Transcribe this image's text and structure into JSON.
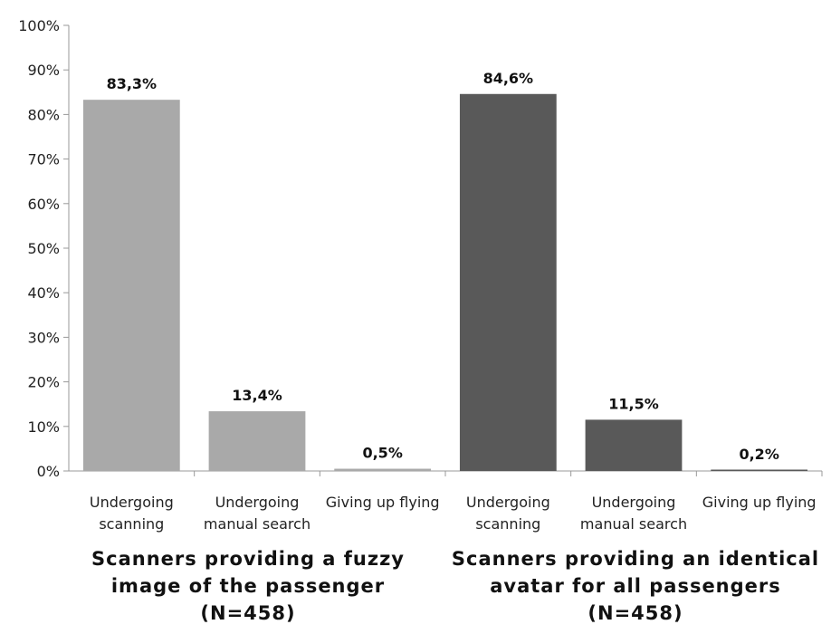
{
  "chart_data": {
    "type": "bar",
    "ylim": [
      0,
      100
    ],
    "yticks": [
      "0%",
      "10%",
      "20%",
      "30%",
      "40%",
      "50%",
      "60%",
      "70%",
      "80%",
      "90%",
      "100%"
    ],
    "grid": false,
    "groups": [
      {
        "name_lines": [
          "Scanners providing a fuzzy",
          "image of the passenger",
          "(N=458)"
        ],
        "color": "#a9a9a9",
        "bars": [
          {
            "label_lines": [
              "Undergoing",
              "scanning"
            ],
            "value": 83.3,
            "value_label": "83,3%"
          },
          {
            "label_lines": [
              "Undergoing",
              "manual search"
            ],
            "value": 13.4,
            "value_label": "13,4%"
          },
          {
            "label_lines": [
              "Giving up flying"
            ],
            "value": 0.5,
            "value_label": "0,5%"
          }
        ]
      },
      {
        "name_lines": [
          "Scanners providing an identical",
          "avatar for all passengers",
          "(N=458)"
        ],
        "color": "#595959",
        "bars": [
          {
            "label_lines": [
              "Undergoing",
              "scanning"
            ],
            "value": 84.6,
            "value_label": "84,6%"
          },
          {
            "label_lines": [
              "Undergoing",
              "manual search"
            ],
            "value": 11.5,
            "value_label": "11,5%"
          },
          {
            "label_lines": [
              "Giving up flying"
            ],
            "value": 0.2,
            "value_label": "0,2%"
          }
        ]
      }
    ]
  }
}
